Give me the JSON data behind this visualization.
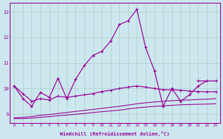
{
  "xlabel": "Windchill (Refroidissement éolien,°C)",
  "background_color": "#cce8ee",
  "line_color": "#990099",
  "grid_color": "#aacccc",
  "hours": [
    0,
    1,
    2,
    3,
    4,
    5,
    6,
    7,
    8,
    9,
    10,
    11,
    12,
    13,
    14,
    15,
    16,
    17,
    18,
    19,
    20,
    21,
    22,
    23
  ],
  "line_main": [
    10.1,
    9.6,
    9.3,
    9.85,
    9.65,
    10.4,
    9.6,
    10.35,
    10.9,
    11.3,
    11.45,
    11.85,
    12.5,
    12.65,
    13.1,
    11.6,
    10.7,
    9.3,
    10.0,
    9.5,
    9.75,
    10.1,
    10.3,
    null
  ],
  "line_upper_end": [
    null,
    null,
    null,
    null,
    null,
    null,
    null,
    null,
    null,
    null,
    null,
    null,
    null,
    null,
    null,
    null,
    null,
    null,
    null,
    null,
    null,
    null,
    null,
    10.3
  ],
  "line_mid": [
    10.1,
    9.8,
    9.5,
    9.6,
    9.55,
    9.7,
    9.65,
    9.7,
    9.75,
    9.8,
    9.88,
    9.93,
    10.0,
    10.05,
    10.1,
    10.05,
    10.0,
    9.95,
    9.95,
    9.93,
    9.9,
    9.88,
    9.87,
    9.87
  ],
  "line_low1": [
    8.85,
    8.87,
    8.9,
    8.95,
    8.98,
    9.02,
    9.06,
    9.1,
    9.14,
    9.18,
    9.22,
    9.26,
    9.3,
    9.35,
    9.4,
    9.44,
    9.47,
    9.5,
    9.52,
    9.54,
    9.55,
    9.57,
    9.58,
    9.6
  ],
  "line_low2": [
    8.82,
    8.82,
    8.84,
    8.87,
    8.9,
    8.93,
    8.96,
    8.99,
    9.02,
    9.06,
    9.09,
    9.12,
    9.15,
    9.2,
    9.24,
    9.27,
    9.3,
    9.32,
    9.34,
    9.36,
    9.37,
    9.38,
    9.39,
    9.4
  ],
  "ylim": [
    8.65,
    13.35
  ],
  "yticks": [
    9,
    10,
    11,
    12,
    13
  ],
  "xlim": [
    -0.5,
    23.5
  ],
  "xticks": [
    0,
    1,
    2,
    3,
    4,
    5,
    6,
    7,
    8,
    9,
    10,
    11,
    12,
    13,
    14,
    15,
    16,
    17,
    18,
    19,
    20,
    21,
    22,
    23
  ]
}
